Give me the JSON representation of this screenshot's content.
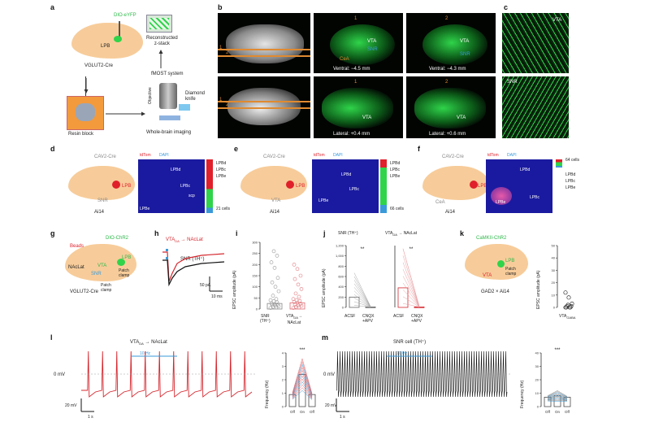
{
  "colors": {
    "brain": "#f7cc9a",
    "green": "#2fd44a",
    "red": "#e0202a",
    "trace_red": "#d5282f",
    "blue": "#3a9ad9",
    "dark_bg": "#050705"
  },
  "panels": {
    "a": {
      "letter": "a",
      "virus": "DIO-eYFP",
      "region": "LPB",
      "mouse": "VGLUT2-Cre",
      "zstack": "Reconstructed\nz-stack",
      "system": "fMOST system",
      "objective": "Objective",
      "knife": "Diamond\nknife",
      "block": "Resin block",
      "imaging": "Whole-brain imaging"
    },
    "b": {
      "letter": "b",
      "num1": "1",
      "num2": "2",
      "vta": "VTA",
      "snr": "SNR",
      "cea": "CeA",
      "ventral1": "Ventral: −4.5 mm",
      "ventral2": "Ventral: −4.3 mm",
      "lateral1": "Lateral: +0.4 mm",
      "lateral2": "Lateral: +0.6 mm"
    },
    "c": {
      "letter": "c",
      "vta": "VTA",
      "snr": "SNR"
    },
    "d": {
      "letter": "d",
      "virus": "CAV2-Cre",
      "lpb": "LPB",
      "snr": "SNR",
      "mouse": "Ai14",
      "tdtom": "tdTom",
      "dapi": "DAPI",
      "lpbd": "LPBd",
      "lpbc": "LPBc",
      "lpbe": "LPBe",
      "scp": "scp",
      "legend": [
        "LPBd",
        "LPBc",
        "LPBe"
      ],
      "count": "21 cells"
    },
    "e": {
      "letter": "e",
      "virus": "CAV2-Cre",
      "lpb": "LPB",
      "vta": "VTA",
      "mouse": "Ai14",
      "tdtom": "tdTom",
      "dapi": "DAPI",
      "lpbd": "LPBd",
      "lpbc": "LPBc",
      "lpbe": "LPBe",
      "legend": [
        "LPBd",
        "LPBc",
        "LPBe"
      ],
      "count": "66 cells"
    },
    "f": {
      "letter": "f",
      "virus": "CAV2-Cre",
      "lpb": "LPB",
      "cea": "CeA",
      "mouse": "Ai14",
      "tdtom": "tdTom",
      "dapi": "DAPI",
      "lpbd": "LPBd",
      "lpbc": "LPBc",
      "lpbe": "LPBe",
      "legend": [
        "LPBd",
        "LPBc",
        "LPBe"
      ],
      "count": "64 cells"
    },
    "g": {
      "letter": "g",
      "virus": "DIO-ChR2",
      "beads": "Beads",
      "naclat": "NAcLat",
      "vta": "VTA",
      "snr": "SNR",
      "lpb": "LPB",
      "patch1": "Patch\nclamp",
      "patch2": "Patch\nclamp",
      "mouse": "VGLUT2-Cre"
    },
    "h": {
      "letter": "h",
      "trace1": "VTA₀ₐ → NAcLat",
      "trace1_main": "VTA",
      "trace1_sub": "DA",
      "trace1_rest": " → NAcLat",
      "trace2": "SNR (TH⁺)",
      "scale_pa": "50 pA",
      "scale_ms": "10 ms"
    },
    "i": {
      "letter": "i",
      "ylabel": "EPSC amplitude (pA)",
      "yticks": [
        "0",
        "50",
        "100",
        "150",
        "200",
        "250",
        "300"
      ],
      "cat1": "SNR\n(TH⁺)",
      "cat2_main": "VTA",
      "cat2_sub": "DA",
      "cat2_rest": "→\nNAcLat"
    },
    "j": {
      "letter": "j",
      "title1": "SNR (TH⁺)",
      "title2_main": "VTA",
      "title2_sub": "DA",
      "title2_rest": " → NAcLat",
      "ylabel": "EPSC amplitude (pA)",
      "yticks": [
        "0",
        "200",
        "400",
        "600",
        "800",
        "1,000",
        "1,200"
      ],
      "x1": "ACSF",
      "x2": "CNQX\n+APV",
      "sig": "**"
    },
    "k": {
      "letter": "k",
      "virus": "CaMKII-ChR2",
      "lpb": "LPB",
      "vta": "VTA",
      "patch": "Patch\nclamp",
      "mouse": "GAD2 × Ai14",
      "ylabel": "EPSC amplitude (pA)",
      "yticks": [
        "0",
        "10",
        "20",
        "30",
        "40",
        "50"
      ],
      "xlabel_main": "VTA",
      "xlabel_sub": "GABA"
    },
    "l": {
      "letter": "l",
      "title_main": "VTA",
      "title_sub": "DA",
      "title_rest": " → NAcLat",
      "stim": "10 Hz",
      "mv0": "0 mV",
      "scale_mv": "20 mV",
      "scale_s": "1 s",
      "ylabel": "Frequency (Hz)",
      "yticks": [
        "0",
        "1",
        "2",
        "3",
        "4"
      ],
      "xticks": [
        "Off",
        "On",
        "Off"
      ],
      "sig": "***"
    },
    "m": {
      "letter": "m",
      "title": "SNR cell (TH⁺)",
      "stim": "10 Hz",
      "mv0": "0 mV",
      "scale_mv": "20 mV",
      "scale_s": "1 s",
      "ylabel": "Frequency (Hz)",
      "yticks": [
        "0",
        "10",
        "20",
        "30",
        "40"
      ],
      "xticks": [
        "Off",
        "On",
        "Off"
      ],
      "sig": "***"
    }
  },
  "chart_data": [
    {
      "type": "scatter",
      "panel": "i",
      "ylabel": "EPSC amplitude (pA)",
      "ylim": [
        0,
        300
      ],
      "categories": [
        "SNR (TH+)",
        "VTA DA → NAcLat"
      ],
      "bar_means": [
        25,
        28
      ],
      "series": [
        {
          "name": "SNR (TH+)",
          "values": [
            5,
            8,
            10,
            12,
            15,
            18,
            20,
            22,
            25,
            30,
            35,
            40,
            45,
            60,
            80,
            100,
            120,
            140,
            185,
            210,
            240,
            260
          ]
        },
        {
          "name": "VTA DA → NAcLat",
          "values": [
            5,
            8,
            10,
            14,
            16,
            20,
            24,
            28,
            32,
            36,
            40,
            45,
            55,
            70,
            90,
            110,
            135,
            150,
            180,
            200
          ]
        }
      ]
    },
    {
      "type": "line",
      "panel": "j-left",
      "title": "SNR (TH+)",
      "ylabel": "EPSC amplitude (pA)",
      "ylim": [
        0,
        1200
      ],
      "categories": [
        "ACSF",
        "CNQX +APV"
      ],
      "bar_means": [
        200,
        10
      ]
    },
    {
      "type": "line",
      "panel": "j-right",
      "title": "VTA DA → NAcLat",
      "ylim": [
        0,
        1200
      ],
      "categories": [
        "ACSF",
        "CNQX +APV"
      ],
      "bar_means": [
        380,
        10
      ]
    },
    {
      "type": "scatter",
      "panel": "k",
      "ylabel": "EPSC amplitude (pA)",
      "ylim": [
        0,
        50
      ],
      "categories": [
        "VTA GABA"
      ],
      "values": [
        0,
        0,
        0,
        0,
        1,
        1,
        2,
        3,
        8,
        12
      ]
    },
    {
      "type": "line",
      "panel": "l",
      "ylabel": "Frequency (Hz)",
      "ylim": [
        0,
        4
      ],
      "categories": [
        "Off",
        "On",
        "Off"
      ],
      "bar_means": [
        0.9,
        2.4,
        0.9
      ]
    },
    {
      "type": "line",
      "panel": "m",
      "ylabel": "Frequency (Hz)",
      "ylim": [
        0,
        40
      ],
      "categories": [
        "Off",
        "On",
        "Off"
      ],
      "bar_means": [
        7,
        8,
        7
      ]
    }
  ]
}
